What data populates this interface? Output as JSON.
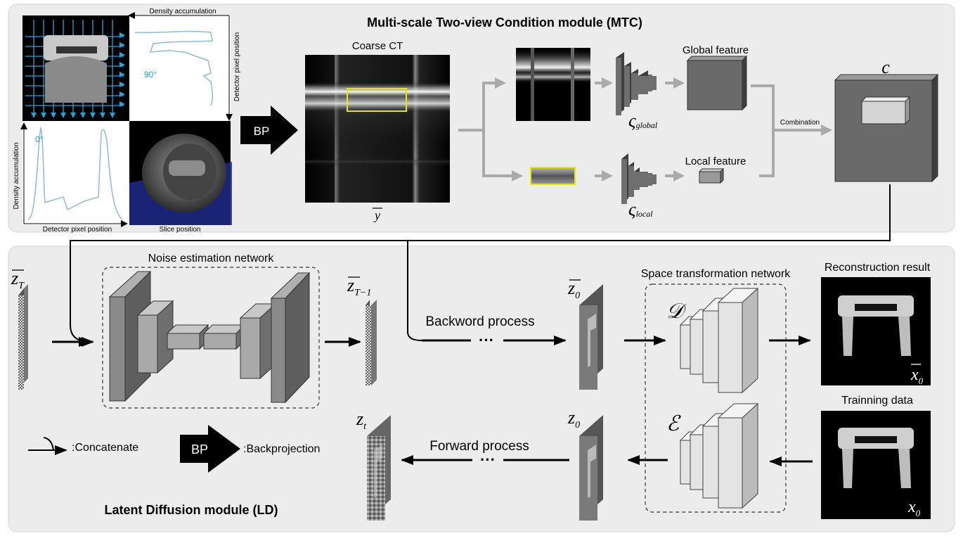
{
  "mtc": {
    "title": "Multi-scale Two-view Condition module (MTC)",
    "coarse_ct": "Coarse CT",
    "y_bar": "y",
    "global_feature": "Global feature",
    "local_feature": "Local feature",
    "combination": "Combination",
    "c_label": "c",
    "bp": "BP",
    "g_global_sym": "ς",
    "g_global_sub": "global",
    "g_local_sym": "ς",
    "g_local_sub": "local",
    "density_top": "Density accumulation",
    "detector_right": "Detector pixel position",
    "angle_90": "90°",
    "angle_0": "0°",
    "density_left": "Density accumulation",
    "detector_bottom": "Detector pixel position",
    "slice_position": "Slice position"
  },
  "ld": {
    "title": "Latent Diffusion module (LD)",
    "noise_net": "Noise estimation network",
    "space_net": "Space transformation network",
    "backward": "Backword process",
    "forward": "Forward process",
    "dots": "···",
    "recon": "Reconstruction result",
    "training": "Trainning data",
    "z": "z",
    "sub_T": "T",
    "sub_T1": "T−1",
    "sub_0": "0",
    "sub_t": "t",
    "x": "x",
    "D": "𝒟",
    "E": "ℰ"
  },
  "legend": {
    "concatenate": ":Concatenate",
    "bp": "BP",
    "backprojection": ":Backprojection"
  },
  "colors": {
    "panel": "#ececec",
    "panel_border": "#d6d6d6",
    "block_dark": "#6e6e6e",
    "block_light": "#d4d4d4",
    "arrow_gray": "#aaaaaa",
    "accent_blue": "#2f9fd6",
    "highlight": "#e8e800"
  }
}
